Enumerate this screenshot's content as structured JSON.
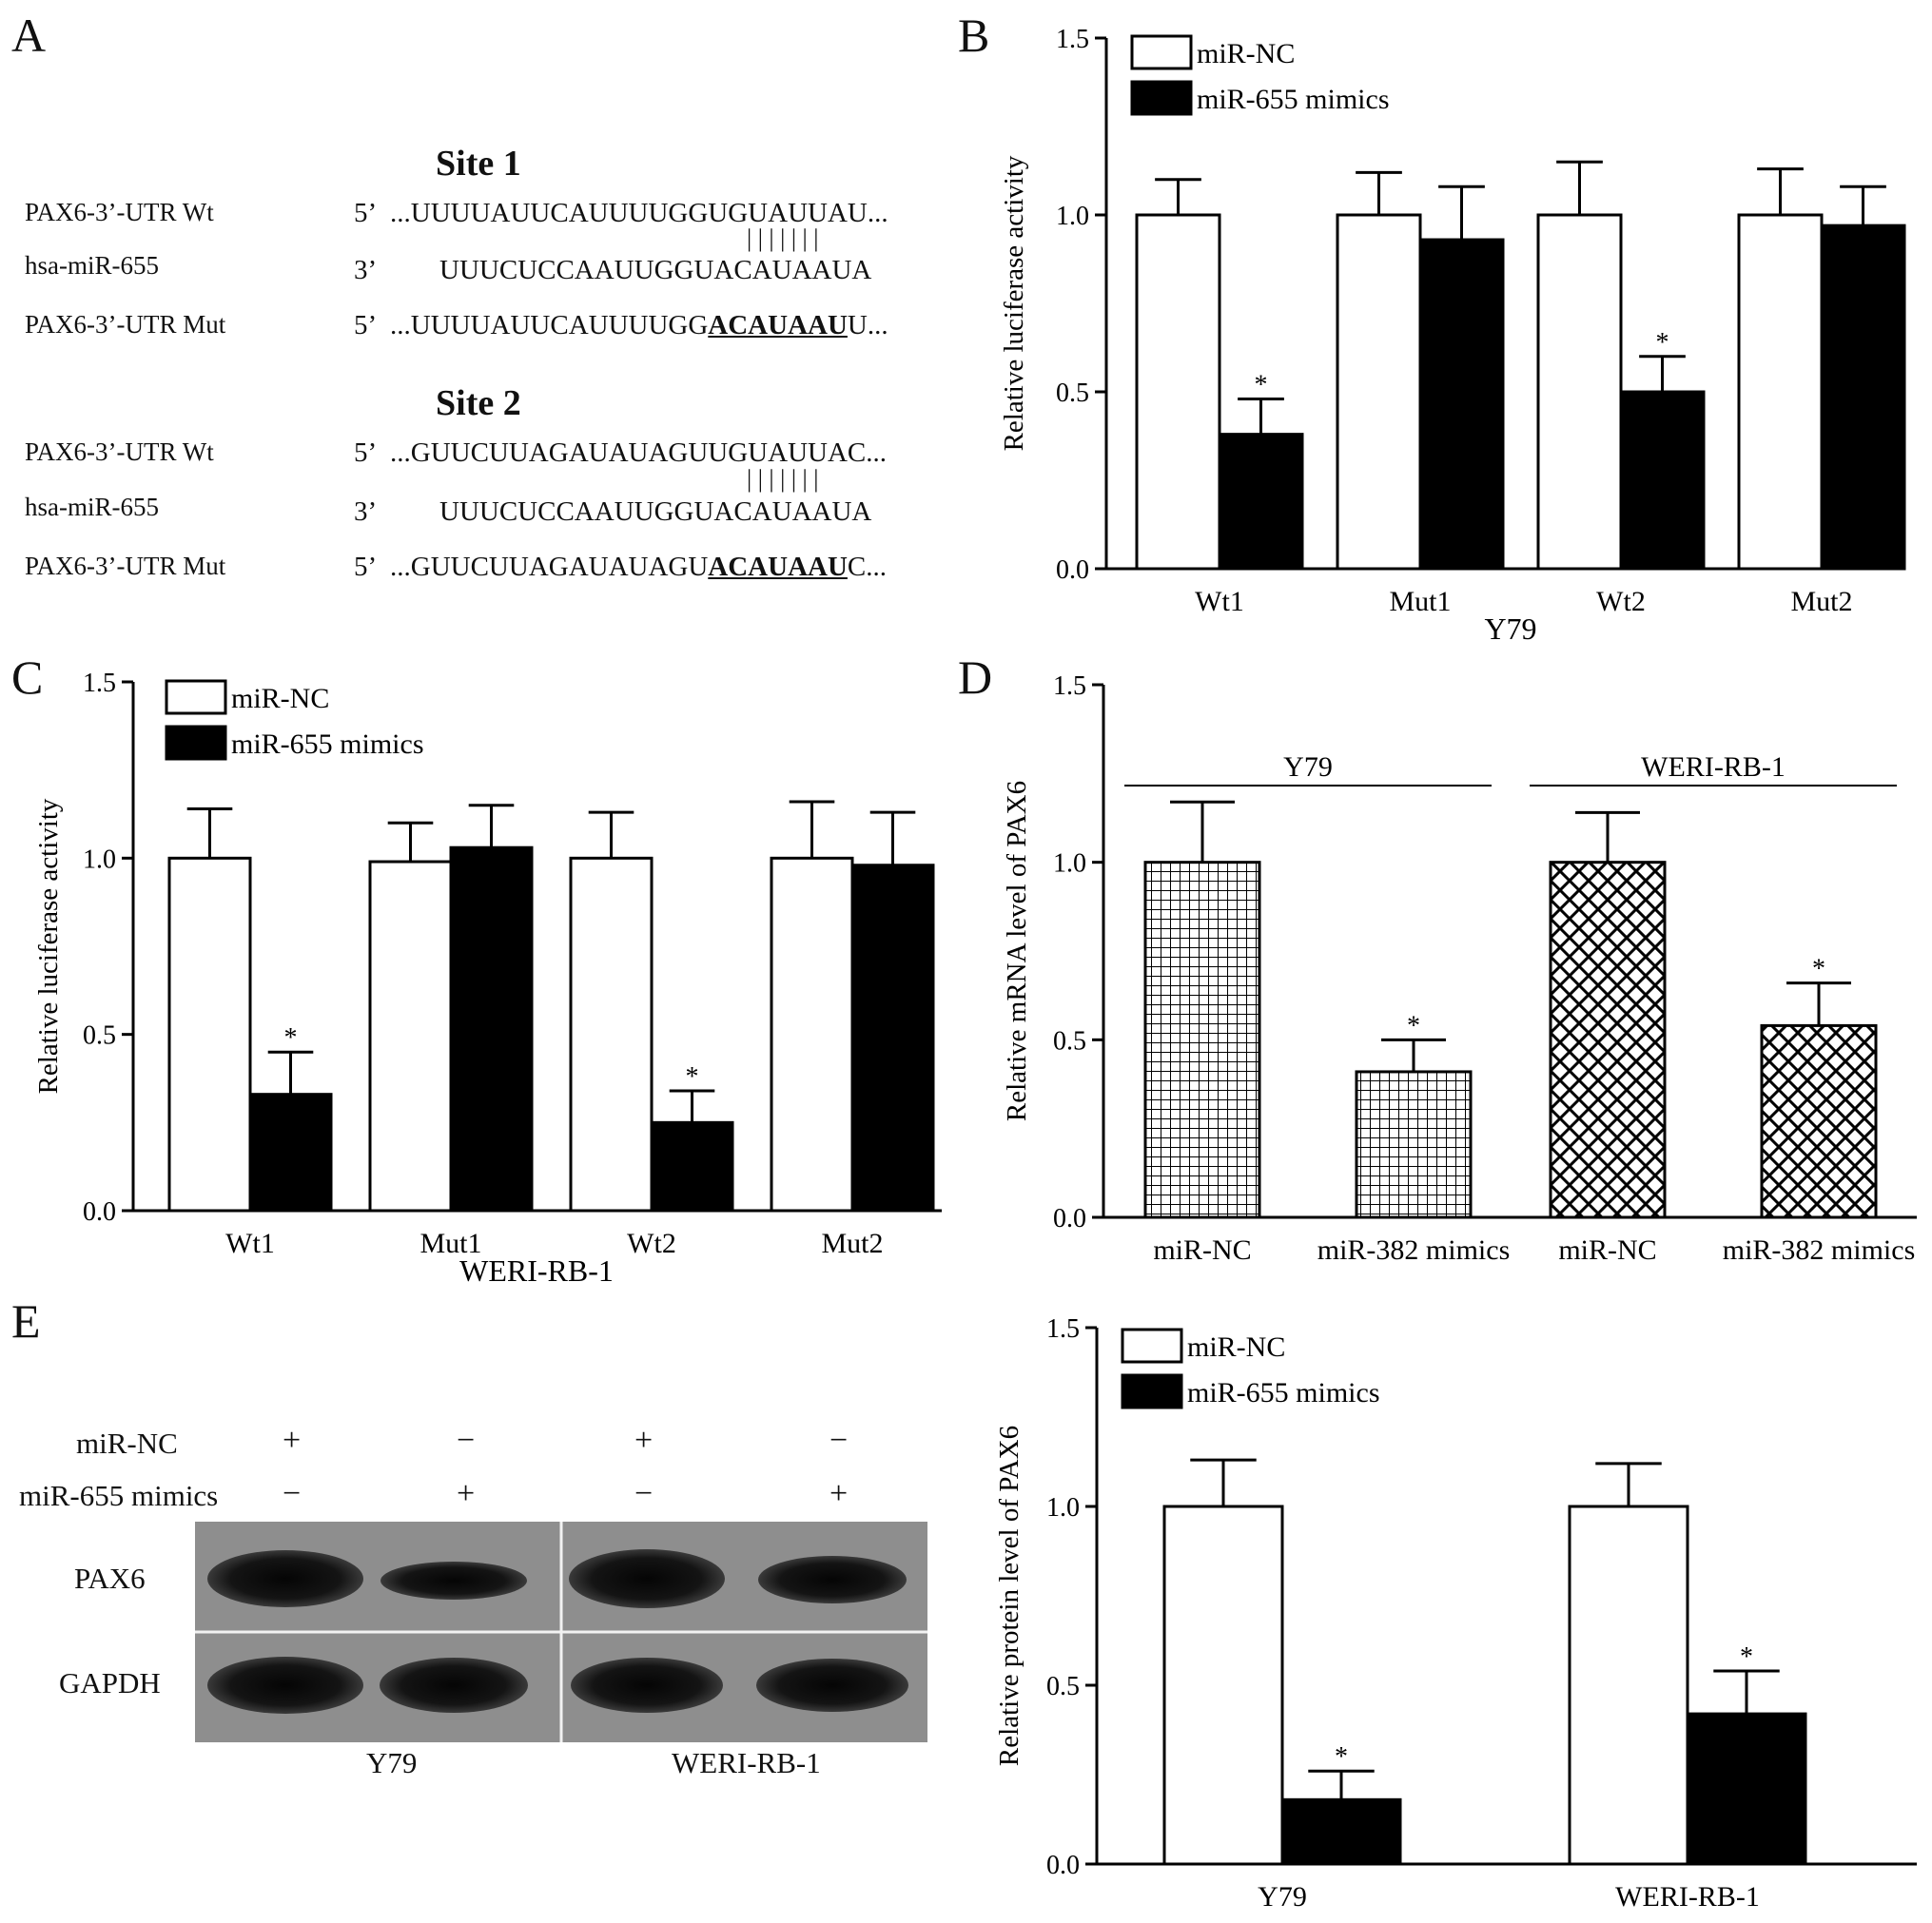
{
  "panels": {
    "A": {
      "label": "A",
      "site1": {
        "title": "Site 1",
        "wt_label": "PAX6-3’-UTR Wt",
        "wt_end": "5’",
        "wt_seq": "...UUUUAUUCAUUUUGGUGUAUUAU...",
        "pairs": "| | | | | | |",
        "mir_label": "hsa-miR-655",
        "mir_end": "3’",
        "mir_seq": "UUUCUCCAAUUGGUACAUAAUA",
        "mut_label": "PAX6-3’-UTR Mut",
        "mut_end": "5’",
        "mut_pre": "...UUUUAUUCAUUUUGG",
        "mut_bold": "ACAUAAU",
        "mut_post": "U..."
      },
      "site2": {
        "title": "Site 2",
        "wt_label": "PAX6-3’-UTR Wt",
        "wt_end": "5’",
        "wt_seq": "...GUUCUUAGAUAUAGUUGUAUUAC...",
        "pairs": "| | | | | | |",
        "mir_label": "hsa-miR-655",
        "mir_end": "3’",
        "mir_seq": "UUUCUCCAAUUGGUACAUAAUA",
        "mut_label": "PAX6-3’-UTR Mut",
        "mut_end": "5’",
        "mut_pre": "...GUUCUUAGAUAUAGU",
        "mut_bold": "ACAUAAU",
        "mut_post": "C..."
      }
    },
    "B": {
      "label": "B"
    },
    "C": {
      "label": "C"
    },
    "D": {
      "label": "D"
    },
    "E": {
      "label": "E",
      "row_labels": [
        "miR-NC",
        "miR-655 mimics"
      ],
      "signs": [
        [
          "+",
          "−",
          "+",
          "−"
        ],
        [
          "−",
          "+",
          "−",
          "+"
        ]
      ],
      "bands": [
        "PAX6",
        "GAPDH"
      ],
      "cells": [
        "Y79",
        "WERI-RB-1"
      ]
    }
  },
  "chart_data": [
    {
      "panel": "B",
      "type": "bar",
      "categories": [
        "Wt1",
        "Mut1",
        "Wt2",
        "Mut2"
      ],
      "series": [
        {
          "name": "miR-NC",
          "values": [
            1.0,
            1.0,
            1.0,
            1.0
          ],
          "errors": [
            0.1,
            0.12,
            0.15,
            0.13
          ]
        },
        {
          "name": "miR-655 mimics",
          "values": [
            0.38,
            0.93,
            0.5,
            0.97
          ],
          "errors": [
            0.1,
            0.15,
            0.1,
            0.11
          ]
        }
      ],
      "significant": [
        [
          false,
          false,
          false,
          false
        ],
        [
          true,
          false,
          true,
          false
        ]
      ],
      "xlabel": "Y79",
      "ylabel": "Relative luciferase activity",
      "ylim": [
        0,
        1.5
      ],
      "yticks": [
        "0.0",
        "0.5",
        "1.0",
        "1.5"
      ],
      "legend": "top-left",
      "colors": [
        "#ffffff",
        "#000000"
      ]
    },
    {
      "panel": "C",
      "type": "bar",
      "categories": [
        "Wt1",
        "Mut1",
        "Wt2",
        "Mut2"
      ],
      "series": [
        {
          "name": "miR-NC",
          "values": [
            1.0,
            0.99,
            1.0,
            1.0
          ],
          "errors": [
            0.14,
            0.11,
            0.13,
            0.16
          ]
        },
        {
          "name": "miR-655 mimics",
          "values": [
            0.33,
            1.03,
            0.25,
            0.98
          ],
          "errors": [
            0.12,
            0.12,
            0.09,
            0.15
          ]
        }
      ],
      "significant": [
        [
          false,
          false,
          false,
          false
        ],
        [
          true,
          false,
          true,
          false
        ]
      ],
      "xlabel": "WERI-RB-1",
      "ylabel": "Relative luciferase activity",
      "ylim": [
        0,
        1.5
      ],
      "yticks": [
        "0.0",
        "0.5",
        "1.0",
        "1.5"
      ],
      "legend": "top-left",
      "colors": [
        "#ffffff",
        "#000000"
      ]
    },
    {
      "panel": "D",
      "type": "bar",
      "categories": [
        "miR-NC",
        "miR-382 mimics",
        "miR-NC",
        "miR-382 mimics"
      ],
      "values": [
        1.0,
        0.41,
        1.0,
        0.54
      ],
      "errors": [
        0.17,
        0.09,
        0.14,
        0.12
      ],
      "significant": [
        false,
        true,
        false,
        true
      ],
      "groups": [
        {
          "name": "Y79",
          "members": [
            0,
            1
          ]
        },
        {
          "name": "WERI-RB-1",
          "members": [
            2,
            3
          ]
        }
      ],
      "patterns": [
        "grid",
        "grid",
        "crosshatch",
        "crosshatch"
      ],
      "xlabel": "",
      "ylabel": "Relative mRNA level of PAX6",
      "ylim": [
        0,
        1.5
      ],
      "yticks": [
        "0.0",
        "0.5",
        "1.0",
        "1.5"
      ]
    },
    {
      "panel": "E",
      "type": "bar",
      "categories": [
        "Y79",
        "WERI-RB-1"
      ],
      "series": [
        {
          "name": "miR-NC",
          "values": [
            1.0,
            1.0
          ],
          "errors": [
            0.13,
            0.12
          ]
        },
        {
          "name": "miR-655 mimics",
          "values": [
            0.18,
            0.42
          ],
          "errors": [
            0.08,
            0.12
          ]
        }
      ],
      "significant": [
        [
          false,
          false
        ],
        [
          true,
          true
        ]
      ],
      "xlabel": "",
      "ylabel": "Relative protein level of PAX6",
      "ylim": [
        0,
        1.5
      ],
      "yticks": [
        "0.0",
        "0.5",
        "1.0",
        "1.5"
      ],
      "legend": "top-left",
      "colors": [
        "#ffffff",
        "#000000"
      ]
    }
  ]
}
